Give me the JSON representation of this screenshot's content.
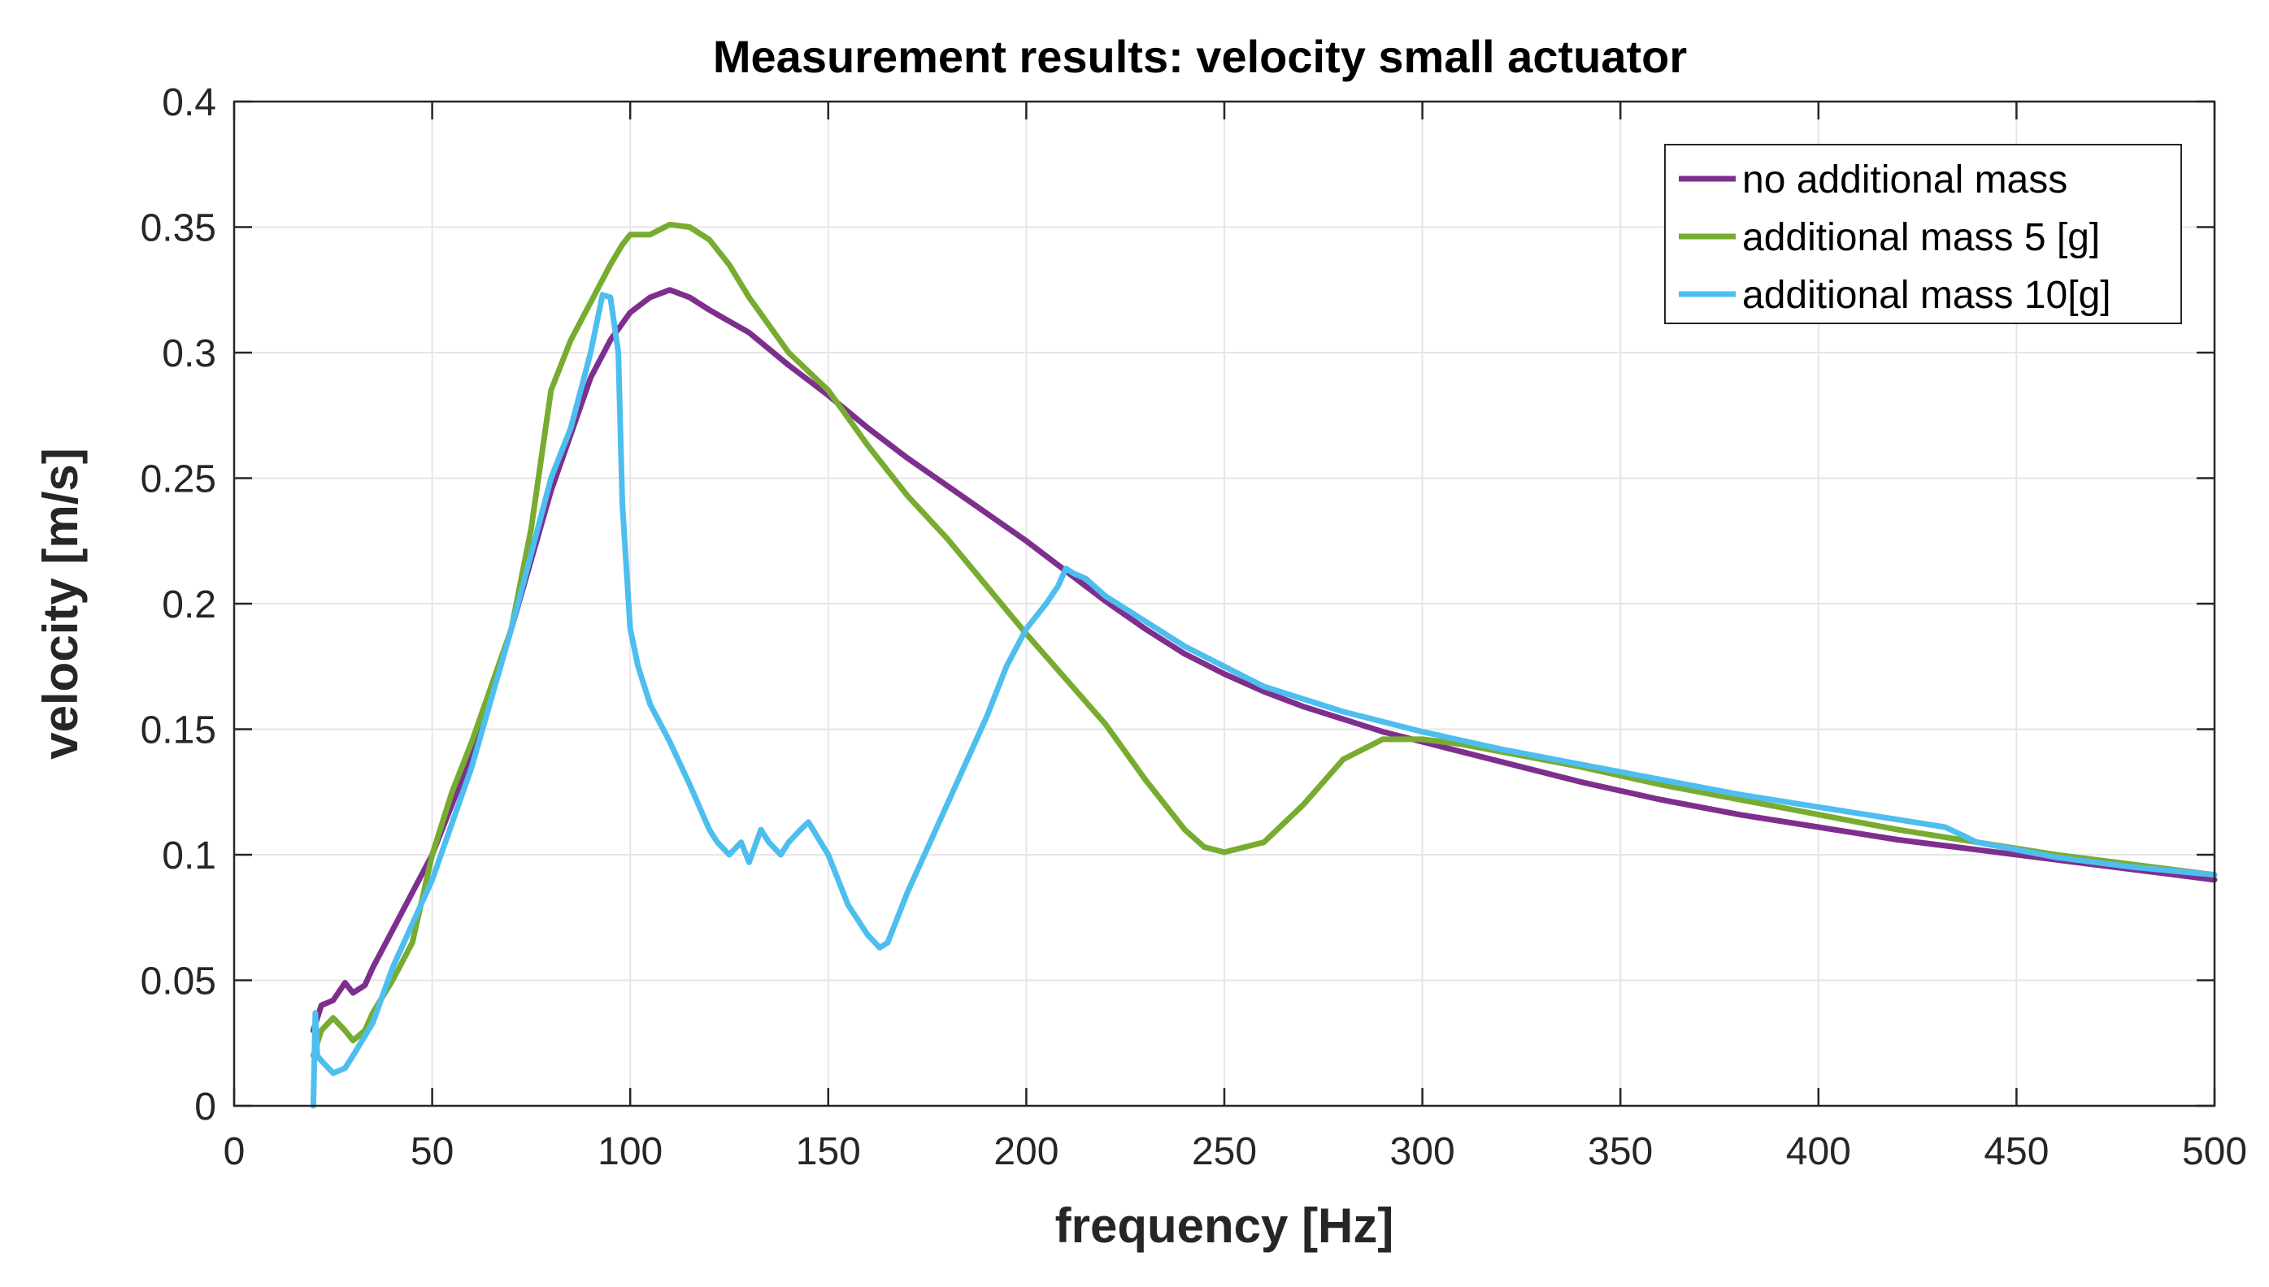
{
  "chart_data": {
    "type": "line",
    "title": "Measurement results: velocity small actuator",
    "xlabel": "frequency [Hz]",
    "ylabel": "velocity [m/s]",
    "xlim": [
      0,
      500
    ],
    "ylim": [
      0,
      0.4
    ],
    "xticks": [
      0,
      50,
      100,
      150,
      200,
      250,
      300,
      350,
      400,
      450,
      500
    ],
    "xtick_labels": [
      "0",
      "50",
      "100",
      "150",
      "200",
      "250",
      "300",
      "350",
      "400",
      "450",
      "500"
    ],
    "yticks": [
      0,
      0.05,
      0.1,
      0.15,
      0.2,
      0.25,
      0.3,
      0.35,
      0.4
    ],
    "ytick_labels": [
      "0",
      "0.05",
      "0.1",
      "0.15",
      "0.2",
      "0.25",
      "0.3",
      "0.35",
      "0.4"
    ],
    "grid": true,
    "legend_position": "top-right",
    "series": [
      {
        "name": "no additional mass",
        "color": "#7E2F8E",
        "x": [
          20,
          22,
          25,
          28,
          30,
          33,
          35,
          40,
          50,
          60,
          70,
          80,
          90,
          95,
          100,
          105,
          110,
          115,
          120,
          130,
          140,
          150,
          160,
          170,
          180,
          190,
          200,
          210,
          220,
          230,
          240,
          250,
          260,
          270,
          280,
          290,
          300,
          320,
          340,
          360,
          380,
          400,
          420,
          440,
          460,
          480,
          500
        ],
        "y": [
          0.03,
          0.04,
          0.042,
          0.049,
          0.045,
          0.048,
          0.055,
          0.07,
          0.1,
          0.14,
          0.19,
          0.245,
          0.29,
          0.305,
          0.316,
          0.322,
          0.325,
          0.322,
          0.317,
          0.308,
          0.295,
          0.283,
          0.27,
          0.258,
          0.247,
          0.236,
          0.225,
          0.213,
          0.201,
          0.19,
          0.18,
          0.172,
          0.165,
          0.159,
          0.154,
          0.149,
          0.145,
          0.137,
          0.129,
          0.122,
          0.116,
          0.111,
          0.106,
          0.102,
          0.098,
          0.094,
          0.09
        ]
      },
      {
        "name": "additional mass 5 [g]",
        "color": "#77AC30",
        "x": [
          20,
          22,
          25,
          28,
          30,
          33,
          35,
          40,
          45,
          50,
          55,
          60,
          70,
          75,
          80,
          85,
          90,
          95,
          98,
          100,
          105,
          110,
          115,
          120,
          125,
          130,
          140,
          150,
          160,
          170,
          180,
          190,
          200,
          210,
          220,
          230,
          240,
          245,
          250,
          260,
          270,
          280,
          290,
          300,
          310,
          320,
          340,
          360,
          380,
          400,
          420,
          440,
          460,
          480,
          500
        ],
        "y": [
          0.02,
          0.03,
          0.035,
          0.03,
          0.026,
          0.03,
          0.037,
          0.05,
          0.065,
          0.1,
          0.125,
          0.145,
          0.19,
          0.23,
          0.285,
          0.305,
          0.32,
          0.335,
          0.343,
          0.347,
          0.347,
          0.351,
          0.35,
          0.345,
          0.335,
          0.322,
          0.3,
          0.285,
          0.263,
          0.243,
          0.226,
          0.207,
          0.188,
          0.17,
          0.152,
          0.13,
          0.11,
          0.103,
          0.101,
          0.105,
          0.12,
          0.138,
          0.146,
          0.146,
          0.144,
          0.141,
          0.135,
          0.128,
          0.122,
          0.116,
          0.11,
          0.105,
          0.1,
          0.096,
          0.092
        ]
      },
      {
        "name": "additional mass 10[g]",
        "color": "#4DBEEE",
        "x": [
          20,
          20.5,
          21,
          22,
          25,
          28,
          30,
          35,
          40,
          50,
          60,
          70,
          80,
          85,
          90,
          93,
          95,
          97,
          98,
          100,
          102,
          105,
          110,
          115,
          120,
          122,
          125,
          128,
          130,
          133,
          135,
          138,
          140,
          143,
          145,
          150,
          155,
          160,
          163,
          165,
          170,
          180,
          190,
          195,
          200,
          205,
          208,
          210,
          212,
          215,
          220,
          230,
          240,
          250,
          260,
          280,
          300,
          320,
          340,
          360,
          380,
          400,
          420,
          432,
          440,
          450,
          460,
          480,
          500
        ],
        "y": [
          0.0,
          0.037,
          0.02,
          0.018,
          0.013,
          0.015,
          0.02,
          0.033,
          0.055,
          0.09,
          0.135,
          0.19,
          0.25,
          0.27,
          0.3,
          0.323,
          0.322,
          0.3,
          0.24,
          0.19,
          0.175,
          0.16,
          0.145,
          0.128,
          0.11,
          0.105,
          0.1,
          0.105,
          0.097,
          0.11,
          0.105,
          0.1,
          0.105,
          0.11,
          0.113,
          0.1,
          0.08,
          0.068,
          0.063,
          0.065,
          0.085,
          0.12,
          0.155,
          0.175,
          0.19,
          0.2,
          0.207,
          0.214,
          0.212,
          0.21,
          0.203,
          0.193,
          0.183,
          0.175,
          0.167,
          0.157,
          0.149,
          0.142,
          0.136,
          0.13,
          0.124,
          0.119,
          0.114,
          0.111,
          0.105,
          0.102,
          0.099,
          0.095,
          0.092
        ]
      }
    ]
  }
}
